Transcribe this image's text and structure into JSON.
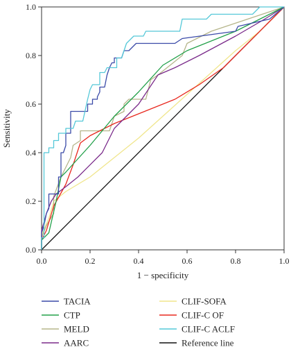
{
  "chart_data": {
    "type": "line",
    "xlabel": "1 − specificity",
    "ylabel": "Sensitivity",
    "xlim": [
      0,
      1
    ],
    "ylim": [
      0,
      1
    ],
    "xticks": [
      "0.0",
      "0.2",
      "0.4",
      "0.6",
      "0.8",
      "1.0"
    ],
    "yticks": [
      "0.0",
      "0.2",
      "0.4",
      "0.6",
      "0.8",
      "1.0"
    ],
    "grid": false,
    "legend_position": "bottom",
    "series": [
      {
        "name": "TACIA",
        "color": "#3a4aa8",
        "points": [
          [
            0,
            0
          ],
          [
            0,
            0.07
          ],
          [
            0.01,
            0.1
          ],
          [
            0.02,
            0.15
          ],
          [
            0.03,
            0.17
          ],
          [
            0.03,
            0.23
          ],
          [
            0.07,
            0.23
          ],
          [
            0.07,
            0.3
          ],
          [
            0.08,
            0.3
          ],
          [
            0.08,
            0.4
          ],
          [
            0.09,
            0.4
          ],
          [
            0.1,
            0.43
          ],
          [
            0.1,
            0.48
          ],
          [
            0.12,
            0.48
          ],
          [
            0.12,
            0.57
          ],
          [
            0.19,
            0.57
          ],
          [
            0.19,
            0.6
          ],
          [
            0.21,
            0.6
          ],
          [
            0.21,
            0.62
          ],
          [
            0.23,
            0.62
          ],
          [
            0.23,
            0.63
          ],
          [
            0.24,
            0.65
          ],
          [
            0.24,
            0.67
          ],
          [
            0.26,
            0.67
          ],
          [
            0.27,
            0.72
          ],
          [
            0.28,
            0.75
          ],
          [
            0.29,
            0.77
          ],
          [
            0.3,
            0.77
          ],
          [
            0.3,
            0.79
          ],
          [
            0.33,
            0.79
          ],
          [
            0.34,
            0.82
          ],
          [
            0.36,
            0.82
          ],
          [
            0.39,
            0.85
          ],
          [
            0.55,
            0.85
          ],
          [
            0.58,
            0.87
          ],
          [
            0.8,
            0.9
          ],
          [
            0.81,
            0.92
          ],
          [
            0.94,
            0.95
          ],
          [
            1,
            1
          ]
        ]
      },
      {
        "name": "CTP",
        "color": "#22a04a",
        "points": [
          [
            0,
            0
          ],
          [
            0,
            0.04
          ],
          [
            0.03,
            0.07
          ],
          [
            0.06,
            0.2
          ],
          [
            0.08,
            0.3
          ],
          [
            0.1,
            0.32
          ],
          [
            0.2,
            0.43
          ],
          [
            0.3,
            0.55
          ],
          [
            0.4,
            0.65
          ],
          [
            0.5,
            0.76
          ],
          [
            0.6,
            0.82
          ],
          [
            0.7,
            0.86
          ],
          [
            0.8,
            0.9
          ],
          [
            0.9,
            0.95
          ],
          [
            1,
            1
          ]
        ]
      },
      {
        "name": "MELD",
        "color": "#b5b58a",
        "points": [
          [
            0,
            0
          ],
          [
            0,
            0.05
          ],
          [
            0.02,
            0.1
          ],
          [
            0.05,
            0.15
          ],
          [
            0.05,
            0.22
          ],
          [
            0.08,
            0.3
          ],
          [
            0.12,
            0.38
          ],
          [
            0.13,
            0.43
          ],
          [
            0.16,
            0.45
          ],
          [
            0.16,
            0.49
          ],
          [
            0.28,
            0.49
          ],
          [
            0.3,
            0.55
          ],
          [
            0.34,
            0.57
          ],
          [
            0.34,
            0.6
          ],
          [
            0.36,
            0.62
          ],
          [
            0.43,
            0.62
          ],
          [
            0.45,
            0.7
          ],
          [
            0.48,
            0.72
          ],
          [
            0.58,
            0.8
          ],
          [
            0.6,
            0.85
          ],
          [
            0.7,
            0.9
          ],
          [
            0.85,
            0.95
          ],
          [
            1,
            1
          ]
        ]
      },
      {
        "name": "AARC",
        "color": "#7a2a8a",
        "points": [
          [
            0,
            0
          ],
          [
            0,
            0.08
          ],
          [
            0.02,
            0.15
          ],
          [
            0.04,
            0.2
          ],
          [
            0.06,
            0.23
          ],
          [
            0.1,
            0.26
          ],
          [
            0.15,
            0.3
          ],
          [
            0.25,
            0.4
          ],
          [
            0.3,
            0.5
          ],
          [
            0.4,
            0.6
          ],
          [
            0.48,
            0.72
          ],
          [
            0.55,
            0.75
          ],
          [
            0.65,
            0.8
          ],
          [
            0.8,
            0.88
          ],
          [
            0.92,
            0.95
          ],
          [
            1,
            1
          ]
        ]
      },
      {
        "name": "CLIF-SOFA",
        "color": "#f0e68c",
        "points": [
          [
            0,
            0
          ],
          [
            0,
            0.06
          ],
          [
            0.03,
            0.13
          ],
          [
            0.05,
            0.2
          ],
          [
            0.1,
            0.24
          ],
          [
            0.2,
            0.3
          ],
          [
            0.3,
            0.38
          ],
          [
            0.4,
            0.46
          ],
          [
            0.5,
            0.55
          ],
          [
            0.6,
            0.64
          ],
          [
            0.7,
            0.73
          ],
          [
            0.8,
            0.82
          ],
          [
            0.9,
            0.9
          ],
          [
            1,
            1
          ]
        ]
      },
      {
        "name": "CLIF-C OF",
        "color": "#e8281e",
        "points": [
          [
            0,
            0
          ],
          [
            0,
            0.04
          ],
          [
            0.02,
            0.08
          ],
          [
            0.05,
            0.18
          ],
          [
            0.1,
            0.27
          ],
          [
            0.13,
            0.35
          ],
          [
            0.16,
            0.44
          ],
          [
            0.2,
            0.47
          ],
          [
            0.3,
            0.52
          ],
          [
            0.4,
            0.56
          ],
          [
            0.45,
            0.58
          ],
          [
            0.55,
            0.62
          ],
          [
            0.65,
            0.68
          ],
          [
            0.75,
            0.75
          ],
          [
            0.85,
            0.85
          ],
          [
            0.93,
            0.93
          ],
          [
            1,
            1
          ]
        ]
      },
      {
        "name": "CLIF-C ACLF",
        "color": "#54c8d8",
        "points": [
          [
            0,
            0
          ],
          [
            0,
            0.05
          ],
          [
            0.01,
            0.05
          ],
          [
            0.01,
            0.4
          ],
          [
            0.03,
            0.4
          ],
          [
            0.03,
            0.42
          ],
          [
            0.05,
            0.42
          ],
          [
            0.05,
            0.45
          ],
          [
            0.07,
            0.45
          ],
          [
            0.07,
            0.48
          ],
          [
            0.1,
            0.48
          ],
          [
            0.1,
            0.5
          ],
          [
            0.13,
            0.5
          ],
          [
            0.14,
            0.53
          ],
          [
            0.17,
            0.53
          ],
          [
            0.19,
            0.62
          ],
          [
            0.2,
            0.66
          ],
          [
            0.21,
            0.68
          ],
          [
            0.24,
            0.68
          ],
          [
            0.24,
            0.73
          ],
          [
            0.26,
            0.73
          ],
          [
            0.27,
            0.75
          ],
          [
            0.31,
            0.75
          ],
          [
            0.31,
            0.79
          ],
          [
            0.33,
            0.79
          ],
          [
            0.35,
            0.85
          ],
          [
            0.37,
            0.87
          ],
          [
            0.38,
            0.88
          ],
          [
            0.42,
            0.88
          ],
          [
            0.43,
            0.9
          ],
          [
            0.57,
            0.9
          ],
          [
            0.58,
            0.95
          ],
          [
            0.68,
            0.95
          ],
          [
            0.7,
            0.97
          ],
          [
            0.87,
            0.97
          ],
          [
            0.9,
            1
          ],
          [
            1,
            1
          ]
        ]
      },
      {
        "name": "Reference line",
        "color": "#111111",
        "points": [
          [
            0,
            0
          ],
          [
            1,
            1
          ]
        ]
      }
    ]
  }
}
